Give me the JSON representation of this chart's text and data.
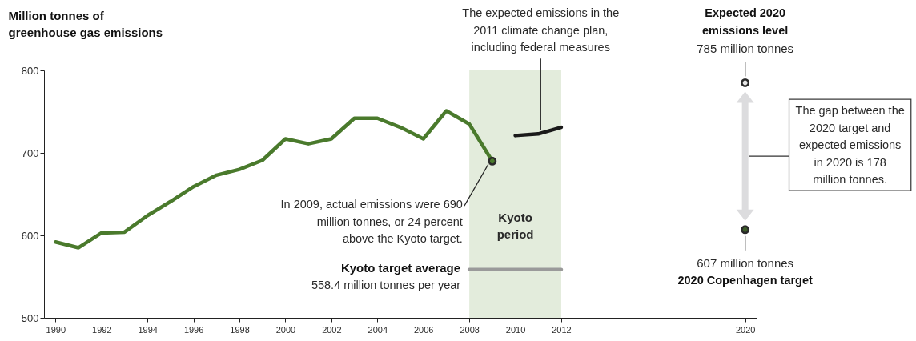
{
  "chart_data": {
    "type": "line",
    "ylabel": "Million tonnes of greenhouse gas emissions",
    "xlim": [
      1989.5,
      2020.5
    ],
    "xticks": [
      1990,
      1992,
      1994,
      1996,
      1998,
      2000,
      2002,
      2004,
      2006,
      2008,
      2010,
      2012,
      2020
    ],
    "ylim": [
      500,
      800
    ],
    "yticks": [
      500,
      600,
      700,
      800
    ],
    "series": [
      {
        "color": "#4a7a2c",
        "x": [
          1990,
          1991,
          1992,
          1993,
          1994,
          1995,
          1996,
          1997,
          1998,
          1999,
          2000,
          2001,
          2002,
          2003,
          2004,
          2005,
          2006,
          2007,
          2008,
          2009
        ],
        "values": [
          592,
          585,
          603,
          604,
          624,
          641,
          659,
          673,
          680,
          691,
          717,
          711,
          717,
          742,
          742,
          731,
          717,
          751,
          735,
          690
        ]
      },
      {
        "color": "#1a1a1a",
        "x": [
          2010,
          2011,
          2012
        ],
        "values": [
          721,
          723,
          731
        ]
      },
      {
        "name": "Kyoto target average",
        "color": "#9a9a9a",
        "x": [
          2008,
          2012
        ],
        "values": [
          558.4,
          558.4
        ]
      },
      {
        "type": "scatter",
        "color": "#4a7a2c",
        "x": [
          2009
        ],
        "values": [
          690
        ]
      },
      {
        "type": "scatter",
        "color": "#e6e6e6",
        "x": [
          2020
        ],
        "values": [
          785
        ],
        "value_labels": [
          "785 million tonnes"
        ]
      },
      {
        "type": "scatter",
        "color": "#3d5c2a",
        "x": [
          2020
        ],
        "values": [
          607
        ],
        "value_labels": [
          "607 million tonnes"
        ]
      }
    ],
    "bands": [
      {
        "axis": "x",
        "from": 2008,
        "to": 2012,
        "label": "Kyoto period",
        "color": "#e3ecdc"
      }
    ],
    "annotations": [
      {
        "text": "In 2009, actual emissions were 690 million tonnes, or 24 percent above the Kyoto target.",
        "x": 2009,
        "y": 690
      },
      {
        "text": "The expected emissions in the 2011 climate change plan, including federal measures",
        "x": 2011,
        "y": 723
      },
      {
        "text": "558.4 million tonnes per year",
        "x": 2008,
        "y": 558.4
      },
      "The gap between the 2020 target and expected emissions in 2020 is 178 million tonnes.",
      "Expected 2020 emissions level",
      "2020 Copenhagen target"
    ]
  }
}
